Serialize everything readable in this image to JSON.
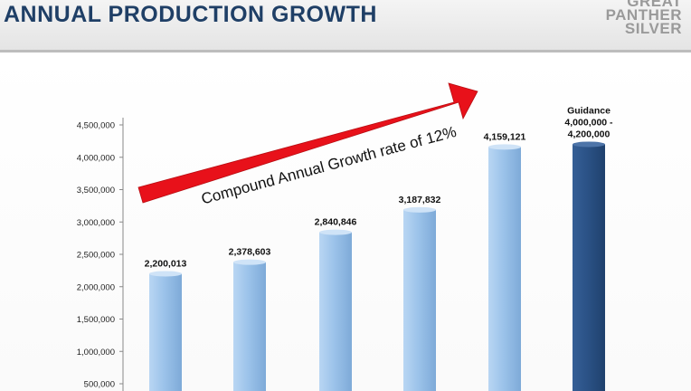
{
  "header": {
    "title": "ANNUAL PRODUCTION GROWTH",
    "logo_lines": [
      "GREAT",
      "PANTHER",
      "SILVER"
    ]
  },
  "annotation": {
    "text": "Compound Annual Growth rate of 12%",
    "arrow_color": "#e8111a"
  },
  "chart_data": {
    "type": "bar",
    "values": [
      2200013,
      2378603,
      2840846,
      3187832,
      4159121,
      4200000
    ],
    "data_labels": [
      "2,200,013",
      "2,378,603",
      "2,840,846",
      "3,187,832",
      "4,159,121",
      "Guidance\n4,000,000 -\n4,200,000"
    ],
    "bar_colors": [
      "#9cc3ea",
      "#9cc3ea",
      "#9cc3ea",
      "#9cc3ea",
      "#9cc3ea",
      "#2b5286"
    ],
    "y_ticks": [
      "500,000",
      "1,000,000",
      "1,500,000",
      "2,000,000",
      "2,500,000",
      "3,000,000",
      "3,500,000",
      "4,000,000",
      "4,500,000"
    ],
    "ylim": [
      0,
      4500000
    ],
    "grid": false,
    "legend": false
  }
}
